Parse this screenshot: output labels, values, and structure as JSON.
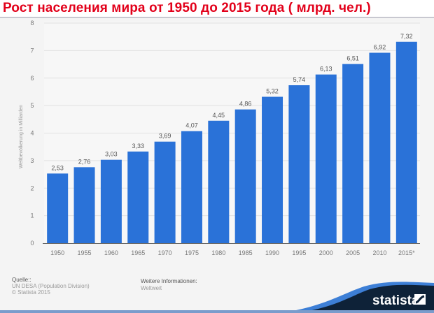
{
  "chart_data": {
    "type": "bar",
    "title": "Рост населения мира от 1950 до 2015 года ( млрд. чел.)",
    "xlabel": "",
    "ylabel": "Weltbevölkerung in Milliarden",
    "ylim": [
      0,
      8
    ],
    "yticks": [
      "0",
      "1",
      "2",
      "3",
      "4",
      "5",
      "6",
      "7",
      "8"
    ],
    "grid": true,
    "categories": [
      "1950",
      "1955",
      "1960",
      "1965",
      "1970",
      "1975",
      "1980",
      "1985",
      "1990",
      "1995",
      "2000",
      "2005",
      "2010",
      "2015*"
    ],
    "values": [
      2.53,
      2.76,
      3.03,
      3.33,
      3.69,
      4.07,
      4.45,
      4.86,
      5.32,
      5.74,
      6.13,
      6.51,
      6.92,
      7.32
    ],
    "value_labels": [
      "2,53",
      "2,76",
      "3,03",
      "3,33",
      "3,69",
      "4,07",
      "4,45",
      "4,86",
      "5,32",
      "5,74",
      "6,13",
      "6,51",
      "6,92",
      "7,32"
    ],
    "bar_color": "#2a72d8"
  },
  "footer": {
    "source_label": "Quelle::",
    "source_text": "UN DESA (Population Division)",
    "copyright": "© Statista 2015",
    "info_label": "Weitere Informationen:",
    "info_text": "Weltweit",
    "logo_text": "statista"
  },
  "colors": {
    "title": "#e2001a",
    "bar": "#2a72d8",
    "logo_bg": "#0e2238"
  }
}
